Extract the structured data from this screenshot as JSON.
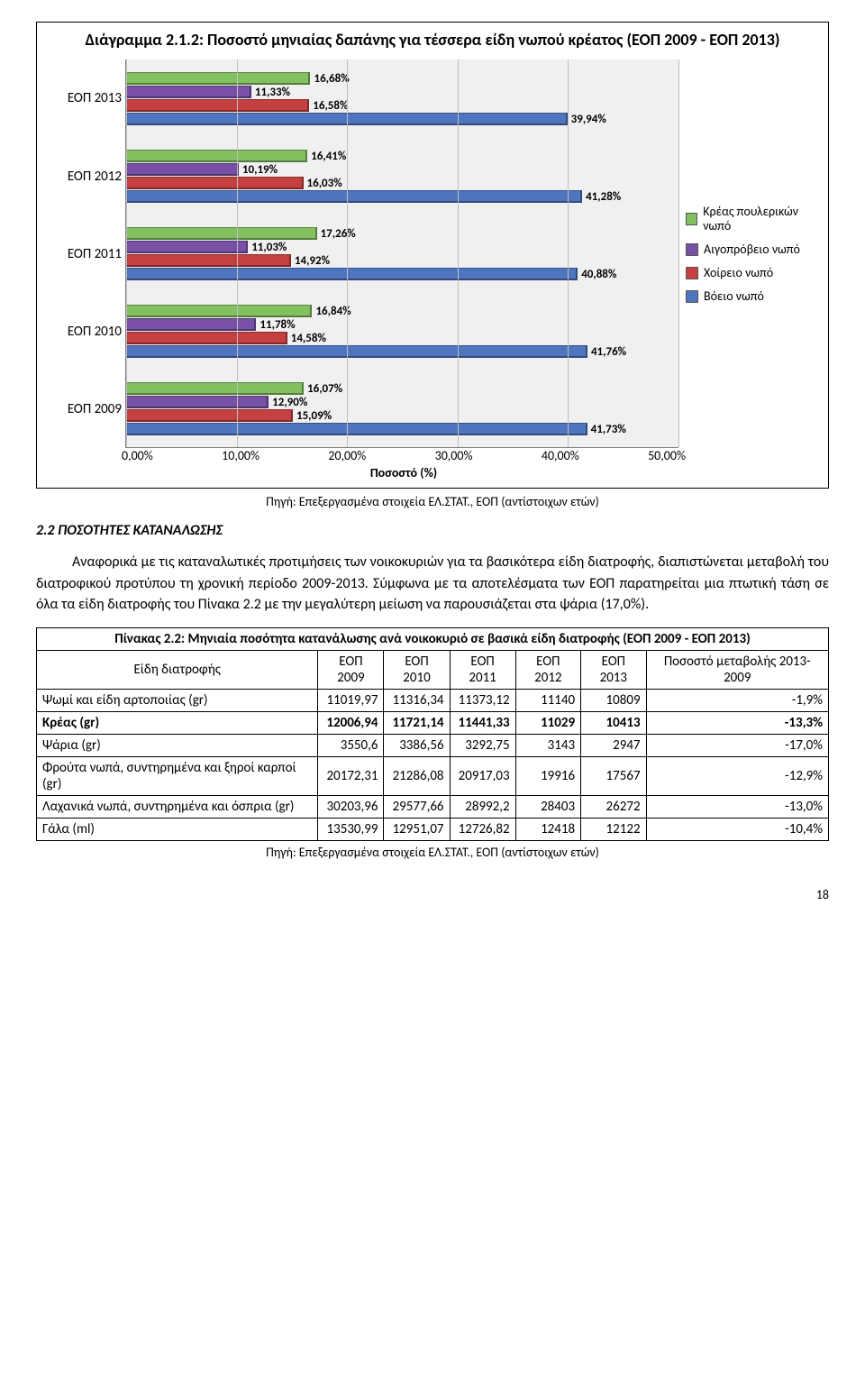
{
  "chart": {
    "type": "bar",
    "title": "Διάγραμμα 2.1.2: Ποσοστό μηνιαίας δαπάνης για τέσσερα είδη νωπού κρέατος (ΕΟΠ 2009 - ΕΟΠ 2013)",
    "source": "Πηγή: Επεξεργασμένα στοιχεία ΕΛ.ΣΤΑΤ., ΕΟΠ (αντίστοιχων ετών)",
    "plot_bg": "#f0f0f0",
    "grid_color": "#bfbfbf",
    "xlim_max": 50,
    "xticks": [
      "0,00%",
      "10,00%",
      "20,00%",
      "30,00%",
      "40,00%",
      "50,00%"
    ],
    "x_axis_title": "Ποσοστό (%)",
    "categories": [
      "ΕΟΠ 2013",
      "ΕΟΠ 2012",
      "ΕΟΠ 2011",
      "ΕΟΠ 2010",
      "ΕΟΠ 2009"
    ],
    "series": [
      {
        "name": "Κρέας πουλερικών νωπό",
        "color": "#82c060"
      },
      {
        "name": "Αιγοπρόβειο νωπό",
        "color": "#7851a7"
      },
      {
        "name": "Χοίρειο νωπό",
        "color": "#c54040"
      },
      {
        "name": "Βόειο νωπό",
        "color": "#5075bf"
      }
    ],
    "data": {
      "ΕΟΠ 2013": [
        {
          "value": 16.68,
          "label": "16,68%"
        },
        {
          "value": 11.33,
          "label": "11,33%"
        },
        {
          "value": 16.58,
          "label": "16,58%"
        },
        {
          "value": 39.94,
          "label": "39,94%"
        }
      ],
      "ΕΟΠ 2012": [
        {
          "value": 16.41,
          "label": "16,41%"
        },
        {
          "value": 10.19,
          "label": "10,19%"
        },
        {
          "value": 16.03,
          "label": "16,03%"
        },
        {
          "value": 41.28,
          "label": "41,28%"
        }
      ],
      "ΕΟΠ 2011": [
        {
          "value": 17.26,
          "label": "17,26%"
        },
        {
          "value": 11.03,
          "label": "11,03%"
        },
        {
          "value": 14.92,
          "label": "14,92%"
        },
        {
          "value": 40.88,
          "label": "40,88%"
        }
      ],
      "ΕΟΠ 2010": [
        {
          "value": 16.84,
          "label": "16,84%"
        },
        {
          "value": 11.78,
          "label": "11,78%"
        },
        {
          "value": 14.58,
          "label": "14,58%"
        },
        {
          "value": 41.76,
          "label": "41,76%"
        }
      ],
      "ΕΟΠ 2009": [
        {
          "value": 16.07,
          "label": "16,07%"
        },
        {
          "value": 12.9,
          "label": "12,90%"
        },
        {
          "value": 15.09,
          "label": "15,09%"
        },
        {
          "value": 41.73,
          "label": "41,73%"
        }
      ]
    }
  },
  "section_heading": "2.2 ΠΟΣΟΤΗΤΕΣ ΚΑΤΑΝΑΛΩΣΗΣ",
  "body_text": "Αναφορικά με τις καταναλωτικές προτιμήσεις των νοικοκυριών για τα βασικότερα είδη διατροφής, διαπιστώνεται μεταβολή του διατροφικού προτύπου τη χρονική περίοδο 2009-2013. Σύμφωνα με τα αποτελέσματα των ΕΟΠ παρατηρείται μια πτωτική τάση σε όλα τα είδη διατροφής του Πίνακα 2.2 με την μεγαλύτερη μείωση να παρουσιάζεται στα ψάρια (17,0%).",
  "table": {
    "title": "Πίνακας 2.2: Μηνιαία ποσότητα κατανάλωσης ανά νοικοκυριό σε βασικά είδη διατροφής (ΕΟΠ 2009 - ΕΟΠ 2013)",
    "columns": [
      "Είδη διατροφής",
      "ΕΟΠ 2009",
      "ΕΟΠ 2010",
      "ΕΟΠ 2011",
      "ΕΟΠ 2012",
      "ΕΟΠ 2013",
      "Ποσοστό μεταβολής 2013-2009"
    ],
    "rows": [
      [
        "Ψωμί και είδη αρτοποιίας (gr)",
        "11019,97",
        "11316,34",
        "11373,12",
        "11140",
        "10809",
        "-1,9%"
      ],
      [
        "Κρέας (gr)",
        "12006,94",
        "11721,14",
        "11441,33",
        "11029",
        "10413",
        "-13,3%"
      ],
      [
        "Ψάρια (gr)",
        "3550,6",
        "3386,56",
        "3292,75",
        "3143",
        "2947",
        "-17,0%"
      ],
      [
        "Φρούτα νωπά, συντηρημένα και ξηροί καρποί (gr)",
        "20172,31",
        "21286,08",
        "20917,03",
        "19916",
        "17567",
        "-12,9%"
      ],
      [
        "Λαχανικά νωπά, συντηρημένα και όσπρια (gr)",
        "30203,96",
        "29577,66",
        "28992,2",
        "28403",
        "26272",
        "-13,0%"
      ],
      [
        "Γάλα (ml)",
        "13530,99",
        "12951,07",
        "12726,82",
        "12418",
        "12122",
        "-10,4%"
      ]
    ],
    "bold_row_index": 1,
    "source": "Πηγή: Επεξεργασμένα στοιχεία ΕΛ.ΣΤΑΤ., ΕΟΠ (αντίστοιχων ετών)"
  },
  "page_number": "18"
}
